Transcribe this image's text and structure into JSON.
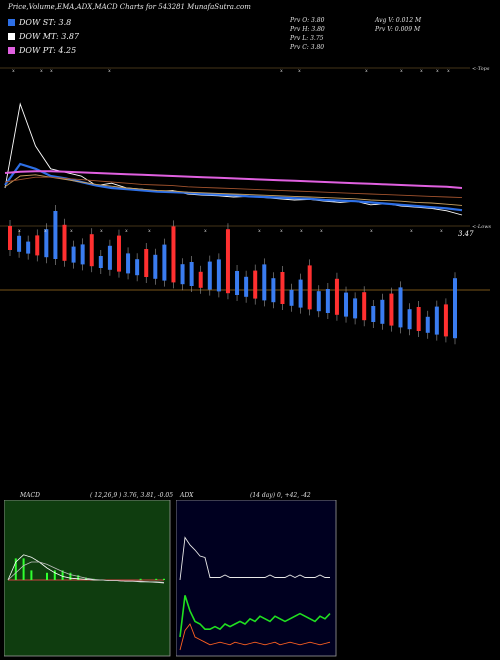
{
  "header": {
    "title": "Price,Volume,EMA,ADX,MACD Charts for 543281 MunafaSutra.com"
  },
  "legend": [
    {
      "label": "DOW ST: 3.8",
      "color": "#2d6fe6"
    },
    {
      "label": "DOW MT: 3.87",
      "color": "#ffffff"
    },
    {
      "label": "DOW PT: 4.25",
      "color": "#e060e0"
    }
  ],
  "stats": {
    "prev_open": "Prv  O: 3.80",
    "prev_high": "Prv  H: 3.80",
    "prev_low": "Prv  L: 3.75",
    "prev_close": "Prv  C: 3.80",
    "avg_volume": "Avg V: 0.012  M",
    "prev_volume": "Prv  V: 0.009 M"
  },
  "labels": {
    "tops": "<-Tops",
    "lows": "<-Lows",
    "last_price": "3.47"
  },
  "chart_data": [
    {
      "type": "line",
      "name": "price-ema",
      "x": [
        0,
        1,
        2,
        3,
        4,
        5,
        6,
        7,
        8,
        9,
        10,
        11,
        12,
        13,
        14,
        15,
        16,
        17,
        18,
        19,
        20,
        21,
        22,
        23,
        24,
        25,
        26,
        27,
        28,
        29,
        30
      ],
      "series": [
        {
          "values": [
            4.0,
            5.4,
            4.7,
            4.32,
            4.26,
            4.2,
            4.04,
            4.08,
            4.0,
            3.98,
            3.94,
            3.96,
            3.9,
            3.88,
            3.87,
            3.85,
            3.86,
            3.84,
            3.82,
            3.8,
            3.81,
            3.78,
            3.76,
            3.78,
            3.72,
            3.74,
            3.7,
            3.68,
            3.66,
            3.62,
            3.55
          ],
          "color": "#ffffff"
        },
        {
          "values": [
            4.05,
            4.4,
            4.32,
            4.2,
            4.16,
            4.1,
            4.04,
            4.0,
            3.98,
            3.96,
            3.94,
            3.93,
            3.92,
            3.9,
            3.89,
            3.88,
            3.86,
            3.85,
            3.84,
            3.83,
            3.82,
            3.8,
            3.79,
            3.78,
            3.76,
            3.74,
            3.72,
            3.7,
            3.68,
            3.66,
            3.63
          ],
          "color": "#2d6fe6"
        },
        {
          "values": [
            4.02,
            4.2,
            4.22,
            4.18,
            4.14,
            4.1,
            4.06,
            4.03,
            4.0,
            3.98,
            3.96,
            3.95,
            3.93,
            3.92,
            3.91,
            3.9,
            3.89,
            3.88,
            3.87,
            3.86,
            3.85,
            3.84,
            3.83,
            3.82,
            3.8,
            3.79,
            3.78,
            3.76,
            3.75,
            3.73,
            3.71
          ],
          "color": "#c8a060"
        },
        {
          "values": [
            4.1,
            4.14,
            4.18,
            4.18,
            4.16,
            4.14,
            4.12,
            4.1,
            4.08,
            4.06,
            4.05,
            4.04,
            4.02,
            4.01,
            4.0,
            3.99,
            3.98,
            3.97,
            3.96,
            3.95,
            3.94,
            3.93,
            3.92,
            3.91,
            3.9,
            3.89,
            3.88,
            3.87,
            3.86,
            3.85,
            3.84
          ],
          "color": "#a0522d"
        },
        {
          "values": [
            4.25,
            4.27,
            4.28,
            4.28,
            4.27,
            4.26,
            4.25,
            4.24,
            4.23,
            4.22,
            4.21,
            4.2,
            4.19,
            4.18,
            4.17,
            4.16,
            4.15,
            4.14,
            4.13,
            4.12,
            4.11,
            4.1,
            4.09,
            4.08,
            4.07,
            4.06,
            4.05,
            4.04,
            4.03,
            4.02,
            4.0
          ],
          "color": "#e060e0"
        }
      ]
    },
    {
      "type": "bar",
      "name": "volume",
      "values": [
        0.6,
        0.4,
        0.3,
        0.5,
        0.7,
        1.2,
        0.9,
        0.4,
        0.5,
        0.8,
        0.3,
        0.6,
        0.9,
        0.5,
        0.4,
        0.7,
        0.6,
        0.9,
        1.4,
        0.5,
        0.6,
        0.4,
        0.7,
        0.8,
        1.6,
        0.6,
        0.5,
        0.7,
        0.9,
        0.6,
        0.8,
        0.4,
        0.7,
        1.1,
        0.5,
        0.6,
        0.9,
        0.6,
        0.5,
        0.7,
        0.4,
        0.6,
        0.8,
        1.0,
        0.5,
        0.6,
        0.4,
        0.7,
        0.8,
        1.5
      ],
      "up_color": "#ff3030",
      "down_color": "#3a7cf0"
    },
    {
      "type": "line",
      "name": "macd",
      "title": "MACD",
      "params": "( 12,26,9 ) 3.76,  3.81, -0.05",
      "x": [
        0,
        1,
        2,
        3,
        4,
        5,
        6,
        7,
        8,
        9,
        10,
        11,
        12,
        13,
        14,
        15,
        16,
        17,
        18,
        19,
        20
      ],
      "series": [
        {
          "values": [
            0,
            0.3,
            0.42,
            0.38,
            0.3,
            0.2,
            0.12,
            0.06,
            0.03,
            0.02,
            0.01,
            0.0,
            0.0,
            -0.01,
            -0.01,
            -0.02,
            -0.02,
            -0.03,
            -0.03,
            -0.04,
            -0.05
          ],
          "color": "#ffffff"
        },
        {
          "values": [
            0,
            0.12,
            0.24,
            0.3,
            0.3,
            0.26,
            0.2,
            0.14,
            0.09,
            0.06,
            0.03,
            0.01,
            0.0,
            -0.01,
            -0.01,
            -0.02,
            -0.02,
            -0.02,
            -0.03,
            -0.03,
            -0.04
          ],
          "color": "#c0c0c0"
        }
      ]
    },
    {
      "type": "line",
      "name": "adx",
      "title": "ADX",
      "params": "(14  day) 0,  +42,  -42",
      "x": [
        0,
        1,
        2,
        3,
        4,
        5,
        6,
        7,
        8,
        9,
        10,
        11,
        12,
        13,
        14,
        15,
        16,
        17,
        18,
        19,
        20,
        21,
        22,
        23,
        24,
        25,
        26,
        27,
        28,
        29,
        30
      ],
      "series": [
        {
          "values": [
            0,
            85,
            70,
            60,
            48,
            45,
            5,
            5,
            5,
            10,
            5,
            5,
            5,
            5,
            5,
            5,
            5,
            5,
            10,
            5,
            5,
            5,
            10,
            5,
            10,
            5,
            5,
            5,
            10,
            5,
            5
          ],
          "color": "#e8e8e8"
        },
        {
          "values": [
            10,
            42,
            30,
            22,
            20,
            16,
            16,
            18,
            16,
            20,
            18,
            20,
            22,
            20,
            24,
            22,
            26,
            24,
            22,
            26,
            24,
            22,
            24,
            26,
            28,
            26,
            24,
            22,
            26,
            24,
            28
          ],
          "color": "#20e020"
        },
        {
          "values": [
            0,
            15,
            20,
            10,
            8,
            6,
            4,
            5,
            6,
            5,
            4,
            6,
            5,
            4,
            5,
            6,
            5,
            4,
            5,
            6,
            4,
            5,
            6,
            5,
            4,
            5,
            6,
            5,
            4,
            5,
            6
          ],
          "color": "#ff6020"
        }
      ]
    }
  ]
}
